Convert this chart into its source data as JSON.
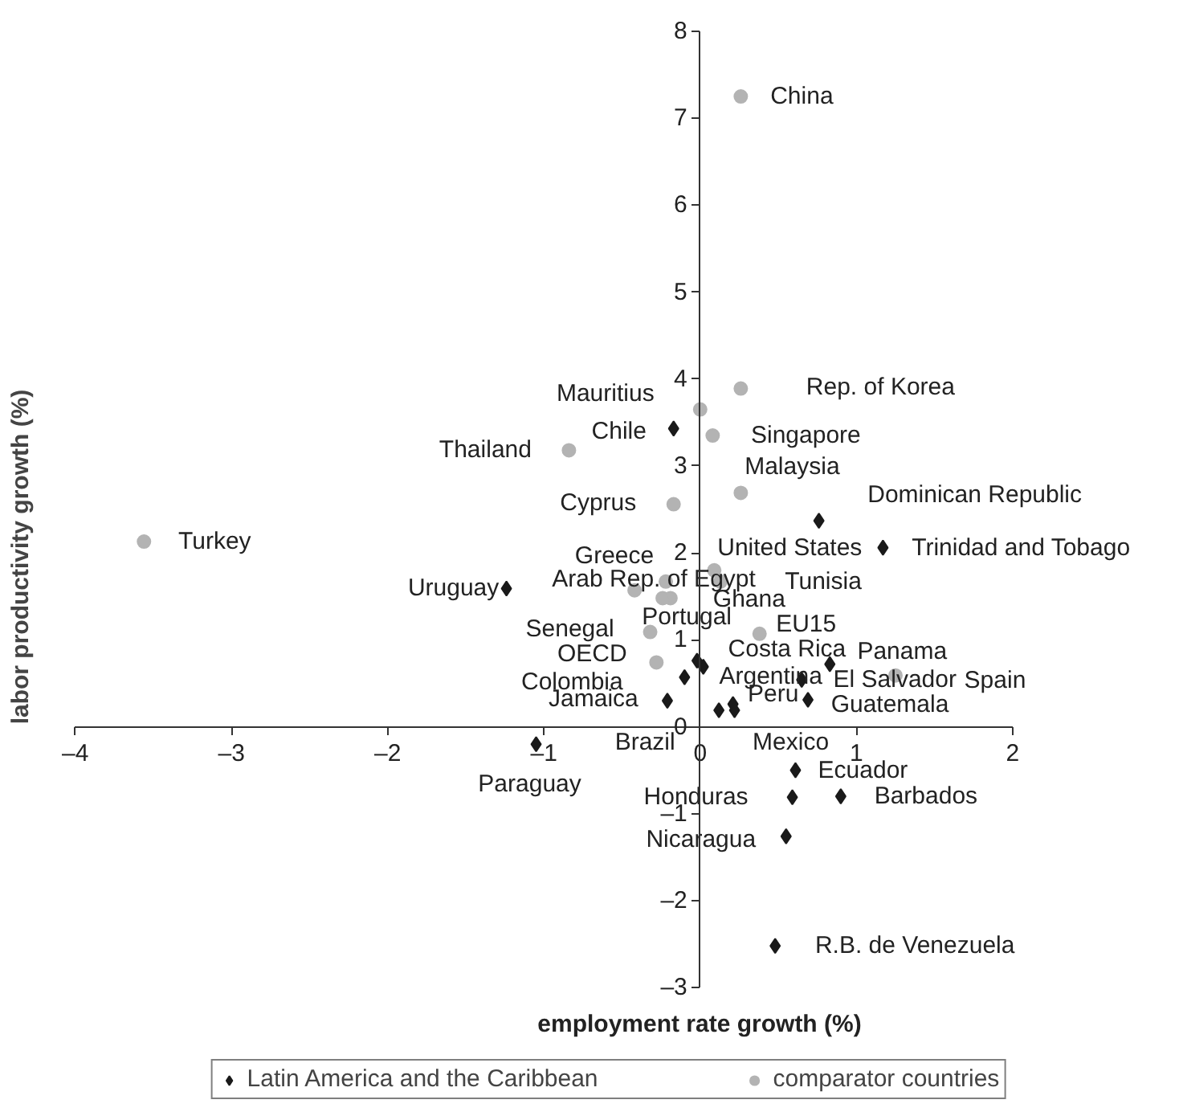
{
  "chart_data": {
    "type": "scatter",
    "xlabel": "employment rate growth (%)",
    "ylabel": "labor productivity growth (%)",
    "xlim": [
      -4,
      2
    ],
    "ylim": [
      -3,
      8
    ],
    "xticks": [
      {
        "value": -4,
        "label": "–4"
      },
      {
        "value": -3,
        "label": "–3"
      },
      {
        "value": -2,
        "label": "–2"
      },
      {
        "value": -1,
        "label": "–1"
      },
      0,
      1,
      2
    ],
    "yticks": [
      {
        "value": -3,
        "label": "–3"
      },
      {
        "value": -2,
        "label": "–2"
      },
      {
        "value": -1,
        "label": "–1"
      },
      0,
      1,
      2,
      3,
      4,
      5,
      6,
      7,
      8
    ],
    "grid": false,
    "legend": "bottom",
    "series": [
      {
        "name": "Latin America and the Caribbean",
        "color": "#1a1a1a",
        "marker": "diamond",
        "x": [
          -0.17,
          0.76,
          1.17,
          -1.24,
          -0.02,
          0.02,
          -0.1,
          0.83,
          0.65,
          0.69,
          -0.21,
          0.21,
          0.12,
          0.22,
          -1.05,
          0.61,
          0.59,
          0.9,
          0.55,
          0.48
        ],
        "values": [
          3.43,
          2.37,
          2.06,
          1.59,
          0.76,
          0.69,
          0.57,
          0.72,
          0.54,
          0.31,
          0.3,
          0.26,
          0.19,
          0.19,
          -0.2,
          -0.5,
          -0.81,
          -0.8,
          -1.26,
          -2.52
        ]
      },
      {
        "name": "comparator countries",
        "color": "#b3b3b3",
        "marker": "circle",
        "x": [
          0.26,
          0.26,
          0.0,
          -0.84,
          0.08,
          0.26,
          -0.17,
          0.09,
          0.13,
          -0.42,
          -0.22,
          -0.19,
          -0.24,
          -0.32,
          0.38,
          -0.28,
          1.25,
          -3.56
        ],
        "values": [
          7.25,
          3.89,
          3.65,
          3.18,
          3.35,
          2.69,
          2.56,
          1.8,
          1.67,
          1.57,
          1.67,
          1.48,
          1.48,
          1.09,
          1.07,
          0.74,
          0.59,
          2.13
        ]
      }
    ],
    "annotations": [
      {
        "text": "China",
        "x": 0.26,
        "y": 7.25
      },
      {
        "text": "Rep. of Korea",
        "x": 0.26,
        "y": 3.89
      },
      {
        "text": "Mauritius",
        "x": 0.0,
        "y": 3.65
      },
      {
        "text": "Chile",
        "x": -0.17,
        "y": 3.43
      },
      {
        "text": "Thailand",
        "x": -0.84,
        "y": 3.18
      },
      {
        "text": "Singapore",
        "x": 0.08,
        "y": 3.35
      },
      {
        "text": "Malaysia",
        "x": 0.26,
        "y": 2.69
      },
      {
        "text": "Cyprus",
        "x": -0.17,
        "y": 2.56
      },
      {
        "text": "Dominican Republic",
        "x": 0.76,
        "y": 2.37
      },
      {
        "text": "Trinidad and Tobago",
        "x": 1.17,
        "y": 2.06
      },
      {
        "text": "United States",
        "x": 0.09,
        "y": 1.8
      },
      {
        "text": "Tunisia",
        "x": 0.13,
        "y": 1.67
      },
      {
        "text": "Arab Rep. of Egypt",
        "x": -0.42,
        "y": 1.57
      },
      {
        "text": "Greece",
        "x": -0.22,
        "y": 1.67
      },
      {
        "text": "Ghana",
        "x": -0.19,
        "y": 1.48
      },
      {
        "text": "Portugal",
        "x": -0.24,
        "y": 1.48
      },
      {
        "text": "Uruguay",
        "x": -1.24,
        "y": 1.59
      },
      {
        "text": "Senegal",
        "x": -0.32,
        "y": 1.09
      },
      {
        "text": "EU15",
        "x": 0.38,
        "y": 1.07
      },
      {
        "text": "OECD",
        "x": -0.28,
        "y": 0.74
      },
      {
        "text": "Costa Rica",
        "x": -0.02,
        "y": 0.76
      },
      {
        "text": "Argentina",
        "x": 0.02,
        "y": 0.69
      },
      {
        "text": "Colombia",
        "x": -0.1,
        "y": 0.57
      },
      {
        "text": "Panama",
        "x": 0.83,
        "y": 0.72
      },
      {
        "text": "El Salvador",
        "x": 0.65,
        "y": 0.54
      },
      {
        "text": "Spain",
        "x": 1.25,
        "y": 0.59
      },
      {
        "text": "Guatemala",
        "x": 0.69,
        "y": 0.31
      },
      {
        "text": "Jamaica",
        "x": -0.21,
        "y": 0.3
      },
      {
        "text": "Peru",
        "x": 0.21,
        "y": 0.26
      },
      {
        "text": "Brazil",
        "x": 0.12,
        "y": 0.19
      },
      {
        "text": "Mexico",
        "x": 0.22,
        "y": 0.19
      },
      {
        "text": "Paraguay",
        "x": -1.05,
        "y": -0.2
      },
      {
        "text": "Ecuador",
        "x": 0.61,
        "y": -0.5
      },
      {
        "text": "Honduras",
        "x": 0.59,
        "y": -0.81
      },
      {
        "text": "Barbados",
        "x": 0.9,
        "y": -0.8
      },
      {
        "text": "Nicaragua",
        "x": 0.55,
        "y": -1.26
      },
      {
        "text": "R.B. de Venezuela",
        "x": 0.48,
        "y": -2.52
      },
      {
        "text": "Turkey",
        "x": -3.56,
        "y": 2.13
      }
    ]
  }
}
